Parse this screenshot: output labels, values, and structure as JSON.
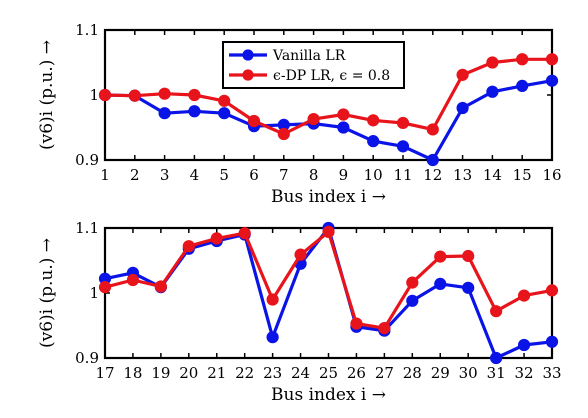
{
  "chart_data": [
    {
      "type": "line",
      "xlabel": "Bus index i →",
      "ylabel": "(v6)i  (p.u.)  →",
      "x": [
        1,
        2,
        3,
        4,
        5,
        6,
        7,
        8,
        9,
        10,
        11,
        12,
        13,
        14,
        15,
        16
      ],
      "xlim": [
        1,
        16
      ],
      "ylim": [
        0.9,
        1.1
      ],
      "yticks": [
        "0.9",
        "1",
        "1.1"
      ],
      "grid": false,
      "legend_position": "top-center",
      "series": [
        {
          "name": "Vanilla LR",
          "color": "#0a14e6",
          "values": [
            1.0,
            0.999,
            0.972,
            0.975,
            0.972,
            0.952,
            0.954,
            0.956,
            0.95,
            0.929,
            0.921,
            0.9,
            0.98,
            1.005,
            1.014,
            1.022
          ]
        },
        {
          "name": "ϵ-DP LR, ϵ = 0.8",
          "color": "#e8141c",
          "values": [
            1.0,
            0.999,
            1.002,
            1.0,
            0.991,
            0.96,
            0.94,
            0.963,
            0.97,
            0.961,
            0.957,
            0.947,
            1.031,
            1.05,
            1.055,
            1.055
          ]
        }
      ]
    },
    {
      "type": "line",
      "xlabel": "Bus index i →",
      "ylabel": "(v6)i  (p.u.)  →",
      "x": [
        17,
        18,
        19,
        20,
        21,
        22,
        23,
        24,
        25,
        26,
        27,
        28,
        29,
        30,
        31,
        32,
        33
      ],
      "xlim": [
        17,
        33
      ],
      "ylim": [
        0.9,
        1.1
      ],
      "yticks": [
        "0.9",
        "1",
        "1.1"
      ],
      "grid": false,
      "series": [
        {
          "name": "Vanilla LR",
          "color": "#0a14e6",
          "values": [
            1.022,
            1.031,
            1.009,
            1.068,
            1.08,
            1.09,
            0.932,
            1.045,
            1.1,
            0.948,
            0.942,
            0.988,
            1.014,
            1.008,
            0.9,
            0.92,
            0.925
          ]
        },
        {
          "name": "ϵ-DP LR, ϵ = 0.8",
          "color": "#e8141c",
          "values": [
            1.009,
            1.02,
            1.01,
            1.072,
            1.084,
            1.092,
            0.99,
            1.059,
            1.094,
            0.953,
            0.946,
            1.016,
            1.056,
            1.057,
            0.972,
            0.996,
            1.004
          ]
        }
      ]
    }
  ]
}
